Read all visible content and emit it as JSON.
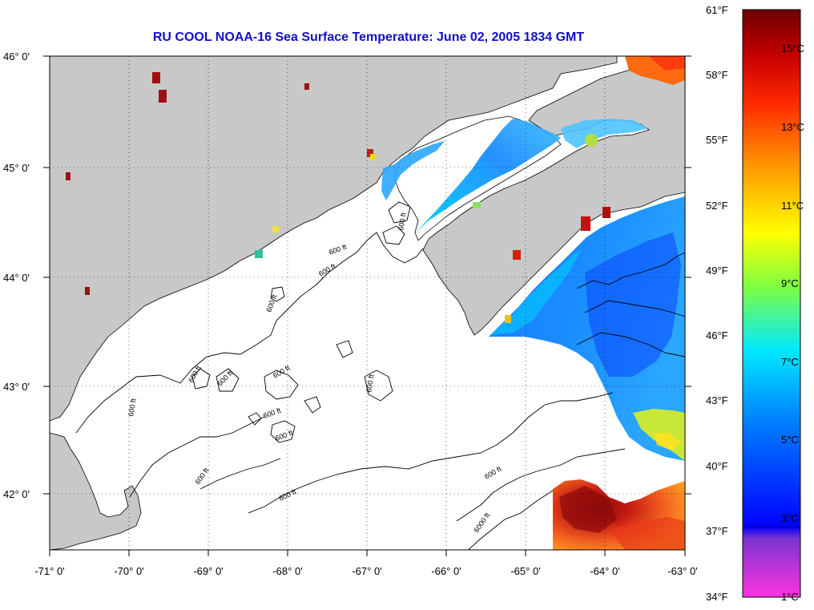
{
  "title": "RU COOL  NOAA-16  Sea Surface Temperature:  June 02, 2005 1834 GMT",
  "map": {
    "lon_range": [
      -71,
      -63
    ],
    "lat_range": [
      41.5,
      46.1
    ],
    "lon_ticks": [
      "-71° 0'",
      "-70° 0'",
      "-69° 0'",
      "-68° 0'",
      "-67° 0'",
      "-66° 0'",
      "-65° 0'",
      "-64° 0'",
      "-63° 0'"
    ],
    "lat_ticks": [
      "46° 0'",
      "45° 0'",
      "44° 0'",
      "43° 0'",
      "42° 0'"
    ],
    "contour_labels": [
      "600 ft",
      "600 ft",
      "600 ft",
      "600 ft",
      "600 ft",
      "600 ft",
      "600 ft",
      "600 ft",
      "600 ft",
      "600 ft",
      "600 ft",
      "600 ft",
      "600 ft",
      "600 ft",
      "6000 ft"
    ]
  },
  "colorbar": {
    "fahrenheit_labels": [
      "61°F",
      "58°F",
      "55°F",
      "52°F",
      "49°F",
      "46°F",
      "43°F",
      "40°F",
      "37°F",
      "34°F"
    ],
    "celsius_labels": [
      "15°C",
      "13°C",
      "11°C",
      "9°C",
      "7°C",
      "5°C",
      "3°C",
      "1°C"
    ],
    "colors": {
      "top": "#8b0000",
      "red": "#ff0000",
      "orange": "#ff8c00",
      "yellow": "#ffff00",
      "green": "#7cfc00",
      "cyan": "#00e5ff",
      "blue": "#0050ff",
      "deep_blue": "#0000ff",
      "purple": "#9933cc",
      "magenta": "#ff33cc"
    }
  },
  "colors": {
    "land": "#c8c8c8",
    "water": "#ffffff",
    "title": "#1010c8"
  }
}
